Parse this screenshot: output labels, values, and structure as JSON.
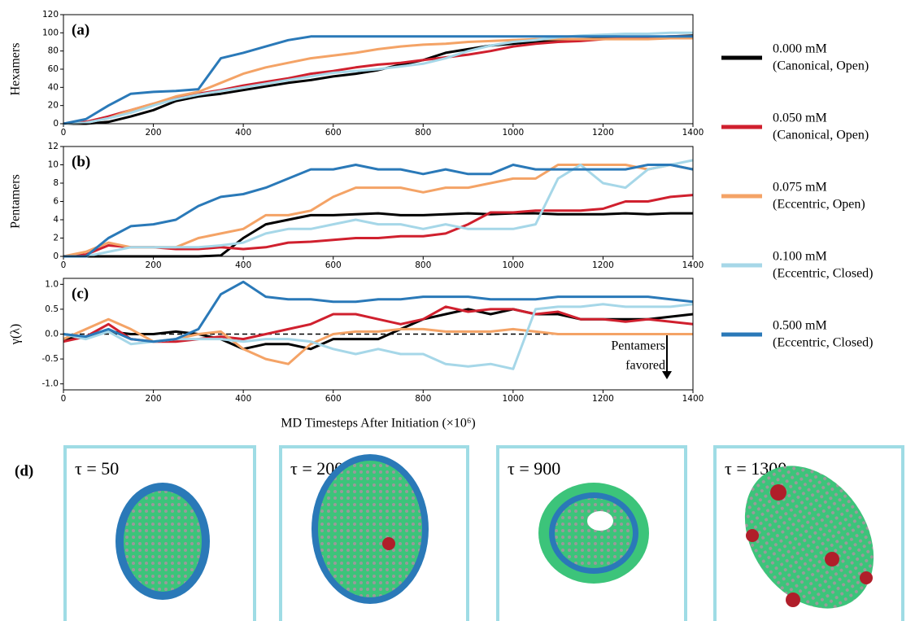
{
  "chart_data": [
    {
      "type": "line",
      "label": "(a)",
      "ylabel": "Hexamers",
      "x": [
        0,
        50,
        100,
        150,
        200,
        250,
        300,
        350,
        400,
        450,
        500,
        550,
        600,
        650,
        700,
        750,
        800,
        850,
        900,
        950,
        1000,
        1050,
        1100,
        1150,
        1200,
        1250,
        1300,
        1350,
        1400
      ],
      "xlim": [
        0,
        1400
      ],
      "xticks": [
        0,
        200,
        400,
        600,
        800,
        1000,
        1200,
        1400
      ],
      "ylim": [
        0,
        120
      ],
      "yticks": [
        0,
        20,
        40,
        60,
        80,
        100,
        120
      ],
      "series": [
        {
          "name": [
            "0.000 mM",
            "(Canonical, Open)"
          ],
          "color": "#000000",
          "values": [
            0,
            0,
            2,
            8,
            15,
            25,
            30,
            33,
            37,
            41,
            45,
            48,
            52,
            55,
            59,
            65,
            70,
            78,
            82,
            86,
            88,
            90,
            92,
            93,
            94,
            95,
            95,
            96,
            97
          ]
        },
        {
          "name": [
            "0.050 mM",
            "(Canonical, Open)"
          ],
          "color": "#d0202e",
          "values": [
            0,
            2,
            8,
            15,
            22,
            28,
            33,
            37,
            42,
            46,
            50,
            55,
            58,
            62,
            65,
            67,
            70,
            73,
            76,
            80,
            85,
            88,
            90,
            91,
            93,
            94,
            95,
            96,
            96
          ]
        },
        {
          "name": [
            "0.075 mM",
            "(Eccentric, Open)"
          ],
          "color": "#f4a366",
          "values": [
            0,
            1,
            6,
            15,
            22,
            30,
            35,
            45,
            55,
            62,
            67,
            72,
            75,
            78,
            82,
            85,
            87,
            88,
            90,
            91,
            92,
            93,
            93,
            93,
            93,
            93,
            93,
            94,
            94
          ]
        },
        {
          "name": [
            "0.100 mM",
            "(Eccentric, Closed)"
          ],
          "color": "#a6d7e8",
          "values": [
            0,
            1,
            6,
            12,
            20,
            27,
            32,
            36,
            40,
            44,
            48,
            52,
            56,
            58,
            60,
            63,
            66,
            72,
            80,
            86,
            90,
            92,
            95,
            97,
            98,
            99,
            99,
            100,
            100
          ]
        },
        {
          "name": [
            "0.500 mM",
            "(Eccentric, Closed)"
          ],
          "color": "#2a79b8",
          "values": [
            0,
            5,
            20,
            33,
            35,
            36,
            38,
            72,
            78,
            85,
            92,
            96,
            96,
            96,
            96,
            96,
            96,
            96,
            96,
            96,
            96,
            96,
            96,
            96,
            96,
            96,
            96,
            96,
            96
          ]
        }
      ]
    },
    {
      "type": "line",
      "label": "(b)",
      "ylabel": "Pentamers",
      "x": [
        0,
        50,
        100,
        150,
        200,
        250,
        300,
        350,
        400,
        450,
        500,
        550,
        600,
        650,
        700,
        750,
        800,
        850,
        900,
        950,
        1000,
        1050,
        1100,
        1150,
        1200,
        1250,
        1300,
        1350,
        1400
      ],
      "xlim": [
        0,
        1400
      ],
      "xticks": [
        0,
        200,
        400,
        600,
        800,
        1000,
        1200,
        1400
      ],
      "ylim": [
        0,
        12
      ],
      "yticks": [
        0,
        2,
        4,
        6,
        8,
        10,
        12
      ],
      "series": [
        {
          "color": "#000000",
          "values": [
            0,
            0,
            0,
            0,
            0,
            0,
            0,
            0.1,
            2,
            3.5,
            4,
            4.5,
            4.5,
            4.6,
            4.7,
            4.5,
            4.5,
            4.6,
            4.7,
            4.6,
            4.7,
            4.7,
            4.6,
            4.6,
            4.6,
            4.7,
            4.6,
            4.7,
            4.7
          ]
        },
        {
          "color": "#d0202e",
          "values": [
            0,
            0.2,
            1.2,
            1,
            1,
            0.8,
            0.8,
            1,
            0.8,
            1,
            1.5,
            1.6,
            1.8,
            2,
            2,
            2.2,
            2.2,
            2.5,
            3.5,
            4.8,
            4.8,
            5,
            5,
            5,
            5.2,
            6,
            6,
            6.5,
            6.7
          ]
        },
        {
          "color": "#f4a366",
          "values": [
            0,
            0.5,
            1.5,
            1,
            1,
            1,
            2,
            2.5,
            3,
            4.5,
            4.5,
            5,
            6.5,
            7.5,
            7.5,
            7.5,
            7,
            7.5,
            7.5,
            8,
            8.5,
            8.5,
            10,
            10,
            10,
            10,
            9.5,
            10,
            9.5
          ]
        },
        {
          "color": "#a6d7e8",
          "values": [
            0,
            0,
            0.5,
            1,
            1,
            1,
            1,
            1.2,
            1.5,
            2.5,
            3,
            3,
            3.5,
            4,
            3.5,
            3.5,
            3,
            3.5,
            3,
            3,
            3,
            3.5,
            8.5,
            10,
            8,
            7.5,
            9.5,
            10,
            10.5
          ]
        },
        {
          "color": "#2a79b8",
          "values": [
            0,
            0,
            2,
            3.3,
            3.5,
            4,
            5.5,
            6.5,
            6.8,
            7.5,
            8.5,
            9.5,
            9.5,
            10,
            9.5,
            9.5,
            9,
            9.5,
            9,
            9,
            10,
            9.5,
            9.5,
            9.5,
            9.5,
            9.5,
            10,
            10,
            9.5
          ]
        }
      ]
    },
    {
      "type": "line",
      "label": "(c)",
      "ylabel": "γ(λ)",
      "xlabel": "MD Timesteps After Initiation (×10⁶)",
      "annotation": [
        "Pentamers",
        "favored"
      ],
      "hline": 0,
      "x": [
        0,
        50,
        100,
        150,
        200,
        250,
        300,
        350,
        400,
        450,
        500,
        550,
        600,
        650,
        700,
        750,
        800,
        850,
        900,
        950,
        1000,
        1050,
        1100,
        1150,
        1200,
        1250,
        1300,
        1350,
        1400
      ],
      "xlim": [
        0,
        1400
      ],
      "xticks": [
        0,
        200,
        400,
        600,
        800,
        1000,
        1200,
        1400
      ],
      "ylim": [
        -1.12,
        1.12
      ],
      "yticks": [
        {
          "value": -1,
          "label": "-1.0"
        },
        {
          "value": -0.5,
          "label": "-0.5"
        },
        {
          "value": 0,
          "label": "0.0"
        },
        {
          "value": 0.5,
          "label": "0.5"
        },
        {
          "value": 1,
          "label": "1.0"
        }
      ],
      "series": [
        {
          "color": "#000000",
          "values": [
            -0.1,
            -0.05,
            0.05,
            0,
            0,
            0.05,
            0,
            -0.1,
            -0.3,
            -0.2,
            -0.2,
            -0.3,
            -0.1,
            -0.1,
            -0.1,
            0.1,
            0.3,
            0.4,
            0.5,
            0.4,
            0.5,
            0.4,
            0.4,
            0.3,
            0.3,
            0.3,
            0.3,
            0.35,
            0.4
          ]
        },
        {
          "color": "#d0202e",
          "values": [
            -0.15,
            -0.05,
            0.2,
            -0.1,
            -0.15,
            -0.15,
            -0.1,
            -0.05,
            -0.1,
            0,
            0.1,
            0.2,
            0.4,
            0.4,
            0.3,
            0.2,
            0.3,
            0.55,
            0.45,
            0.5,
            0.5,
            0.4,
            0.45,
            0.3,
            0.3,
            0.25,
            0.3,
            0.25,
            0.2
          ]
        },
        {
          "color": "#f4a366",
          "values": [
            -0.1,
            0.1,
            0.3,
            0.1,
            -0.15,
            -0.1,
            0,
            0.05,
            -0.3,
            -0.5,
            -0.6,
            -0.2,
            0,
            0.05,
            0.05,
            0.1,
            0.1,
            0.05,
            0.05,
            0.05,
            0.1,
            0.05,
            0,
            0,
            0,
            0,
            0,
            0,
            0
          ]
        },
        {
          "color": "#a6d7e8",
          "values": [
            0,
            -0.1,
            0.05,
            -0.2,
            -0.15,
            -0.1,
            -0.1,
            -0.1,
            -0.15,
            -0.1,
            -0.1,
            -0.15,
            -0.3,
            -0.4,
            -0.3,
            -0.4,
            -0.4,
            -0.6,
            -0.65,
            -0.6,
            -0.7,
            0.5,
            0.55,
            0.55,
            0.6,
            0.55,
            0.55,
            0.55,
            0.6
          ]
        },
        {
          "color": "#2a79b8",
          "values": [
            0,
            -0.05,
            0.1,
            -0.1,
            -0.15,
            -0.1,
            0.1,
            0.8,
            1.05,
            0.75,
            0.7,
            0.7,
            0.65,
            0.65,
            0.7,
            0.7,
            0.75,
            0.75,
            0.75,
            0.7,
            0.7,
            0.7,
            0.75,
            0.75,
            0.75,
            0.75,
            0.75,
            0.7,
            0.65
          ]
        }
      ]
    }
  ],
  "panels": {
    "label": "(d)",
    "items": [
      {
        "label": "τ = 50"
      },
      {
        "label": "τ = 200"
      },
      {
        "label": "τ = 900"
      },
      {
        "label": "τ = 1300"
      }
    ]
  }
}
